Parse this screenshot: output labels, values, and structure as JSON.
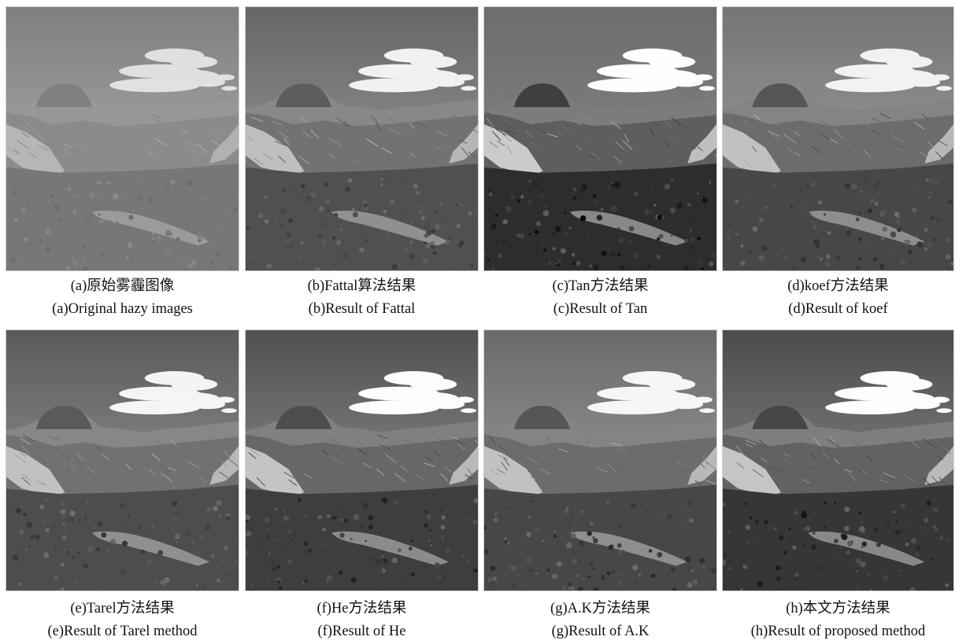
{
  "figure": {
    "panels": [
      {
        "caption_cn": "(a)原始雾霾图像",
        "caption_en": "(a)Original hazy images",
        "haze": 0.5,
        "contrast": 0.8,
        "cloud_strength": 0.75,
        "sky_top": "#6f6f6f",
        "sky_bottom": "#b8b8b8"
      },
      {
        "caption_cn": "(b)Fattal算法结果",
        "caption_en": "(b)Result of Fattal",
        "haze": 0.25,
        "contrast": 1.05,
        "cloud_strength": 0.9,
        "sky_top": "#5c5c5c",
        "sky_bottom": "#a3a3a3"
      },
      {
        "caption_cn": "(c)Tan方法结果",
        "caption_en": "(c)Result of Tan",
        "haze": 0.1,
        "contrast": 1.3,
        "cloud_strength": 1.0,
        "sky_top": "#6a6a6a",
        "sky_bottom": "#8a8a8a"
      },
      {
        "caption_cn": "(d)koef方法结果",
        "caption_en": "(d)Result of koef",
        "haze": 0.2,
        "contrast": 1.1,
        "cloud_strength": 0.9,
        "sky_top": "#6e6e6e",
        "sky_bottom": "#a9a9a9"
      },
      {
        "caption_cn": "(e)Tarel方法结果",
        "caption_en": "(e)Result of Tarel method",
        "haze": 0.25,
        "contrast": 1.1,
        "cloud_strength": 0.95,
        "sky_top": "#4e4e4e",
        "sky_bottom": "#a4a4a4"
      },
      {
        "caption_cn": "(f)He方法结果",
        "caption_en": "(f)Result of He",
        "haze": 0.15,
        "contrast": 1.15,
        "cloud_strength": 1.0,
        "sky_top": "#4a4a4a",
        "sky_bottom": "#a0a0a0"
      },
      {
        "caption_cn": "(g)A.K方法结果",
        "caption_en": "(g)Result of A.K",
        "haze": 0.2,
        "contrast": 1.1,
        "cloud_strength": 0.95,
        "sky_top": "#636363",
        "sky_bottom": "#a8a8a8"
      },
      {
        "caption_cn": "(h)本文方法结果",
        "caption_en": "(h)Result of proposed method",
        "haze": 0.12,
        "contrast": 1.2,
        "cloud_strength": 1.0,
        "sky_top": "#474747",
        "sky_bottom": "#9c9c9c"
      }
    ]
  }
}
